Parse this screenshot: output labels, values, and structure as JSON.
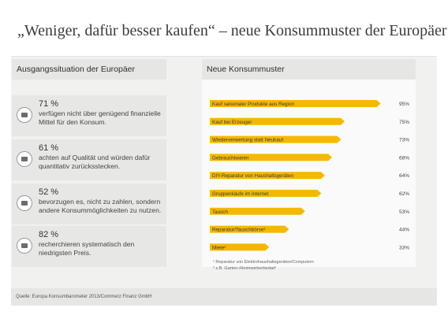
{
  "title": "„Weniger, dafür besser kaufen“ – neue Konsummuster der Europäer",
  "left_panel": {
    "heading": "Ausgangssituation der Europäer",
    "stats": [
      {
        "value": "71 %",
        "text": "verfügen nicht über genügend finanzielle Mittel für den Konsum.",
        "icon": "wallet-icon"
      },
      {
        "value": "61 %",
        "text": "achten auf Qualität und würden dafür quantitativ zurücksstecken.",
        "icon": "quality-seal-icon"
      },
      {
        "value": "52 %",
        "text": "bevorzugen es, nicht zu zahlen, sondern andere Konsummöglichkeiten zu nutzen.",
        "icon": "handshake-icon"
      },
      {
        "value": "82 %",
        "text": "recherchieren systematisch den niedrigsten Preis.",
        "icon": "price-compare-icon"
      }
    ]
  },
  "right_panel": {
    "heading": "Neue Konsummuster",
    "footnotes": [
      "¹ Reparatur von Elektrohaushaltsgeräten/Computern",
      "² z.B. Garten-/Heimwerkerbedarf"
    ]
  },
  "chart_data": {
    "type": "bar",
    "orientation": "horizontal",
    "categories": [
      "Kauf saisonaler Produkte aus Region",
      "Kauf bei Erzeuger",
      "Wiederverwertung statt Neukauf",
      "Gebrauchtwaren",
      "DIY-Reparatur von Haushaltsgeräten",
      "Gruppenkäufe im Internet",
      "Tausch",
      "Reparatur/Tauschbörse¹",
      "Miete²"
    ],
    "values": [
      95,
      75,
      73,
      68,
      64,
      62,
      53,
      44,
      33
    ],
    "value_labels": [
      "95%",
      "75%",
      "73%",
      "68%",
      "64%",
      "62%",
      "53%",
      "44%",
      "33%"
    ],
    "xlim": [
      0,
      100
    ],
    "bar_color": "#f5b800",
    "grid": false
  },
  "source": "Quelle: Europa Konsumbarometer 2013/Commerz Finanz GmbH",
  "colors": {
    "accent": "#f5b800",
    "panel": "#e7e7e6",
    "background": "#f1f1f0"
  }
}
